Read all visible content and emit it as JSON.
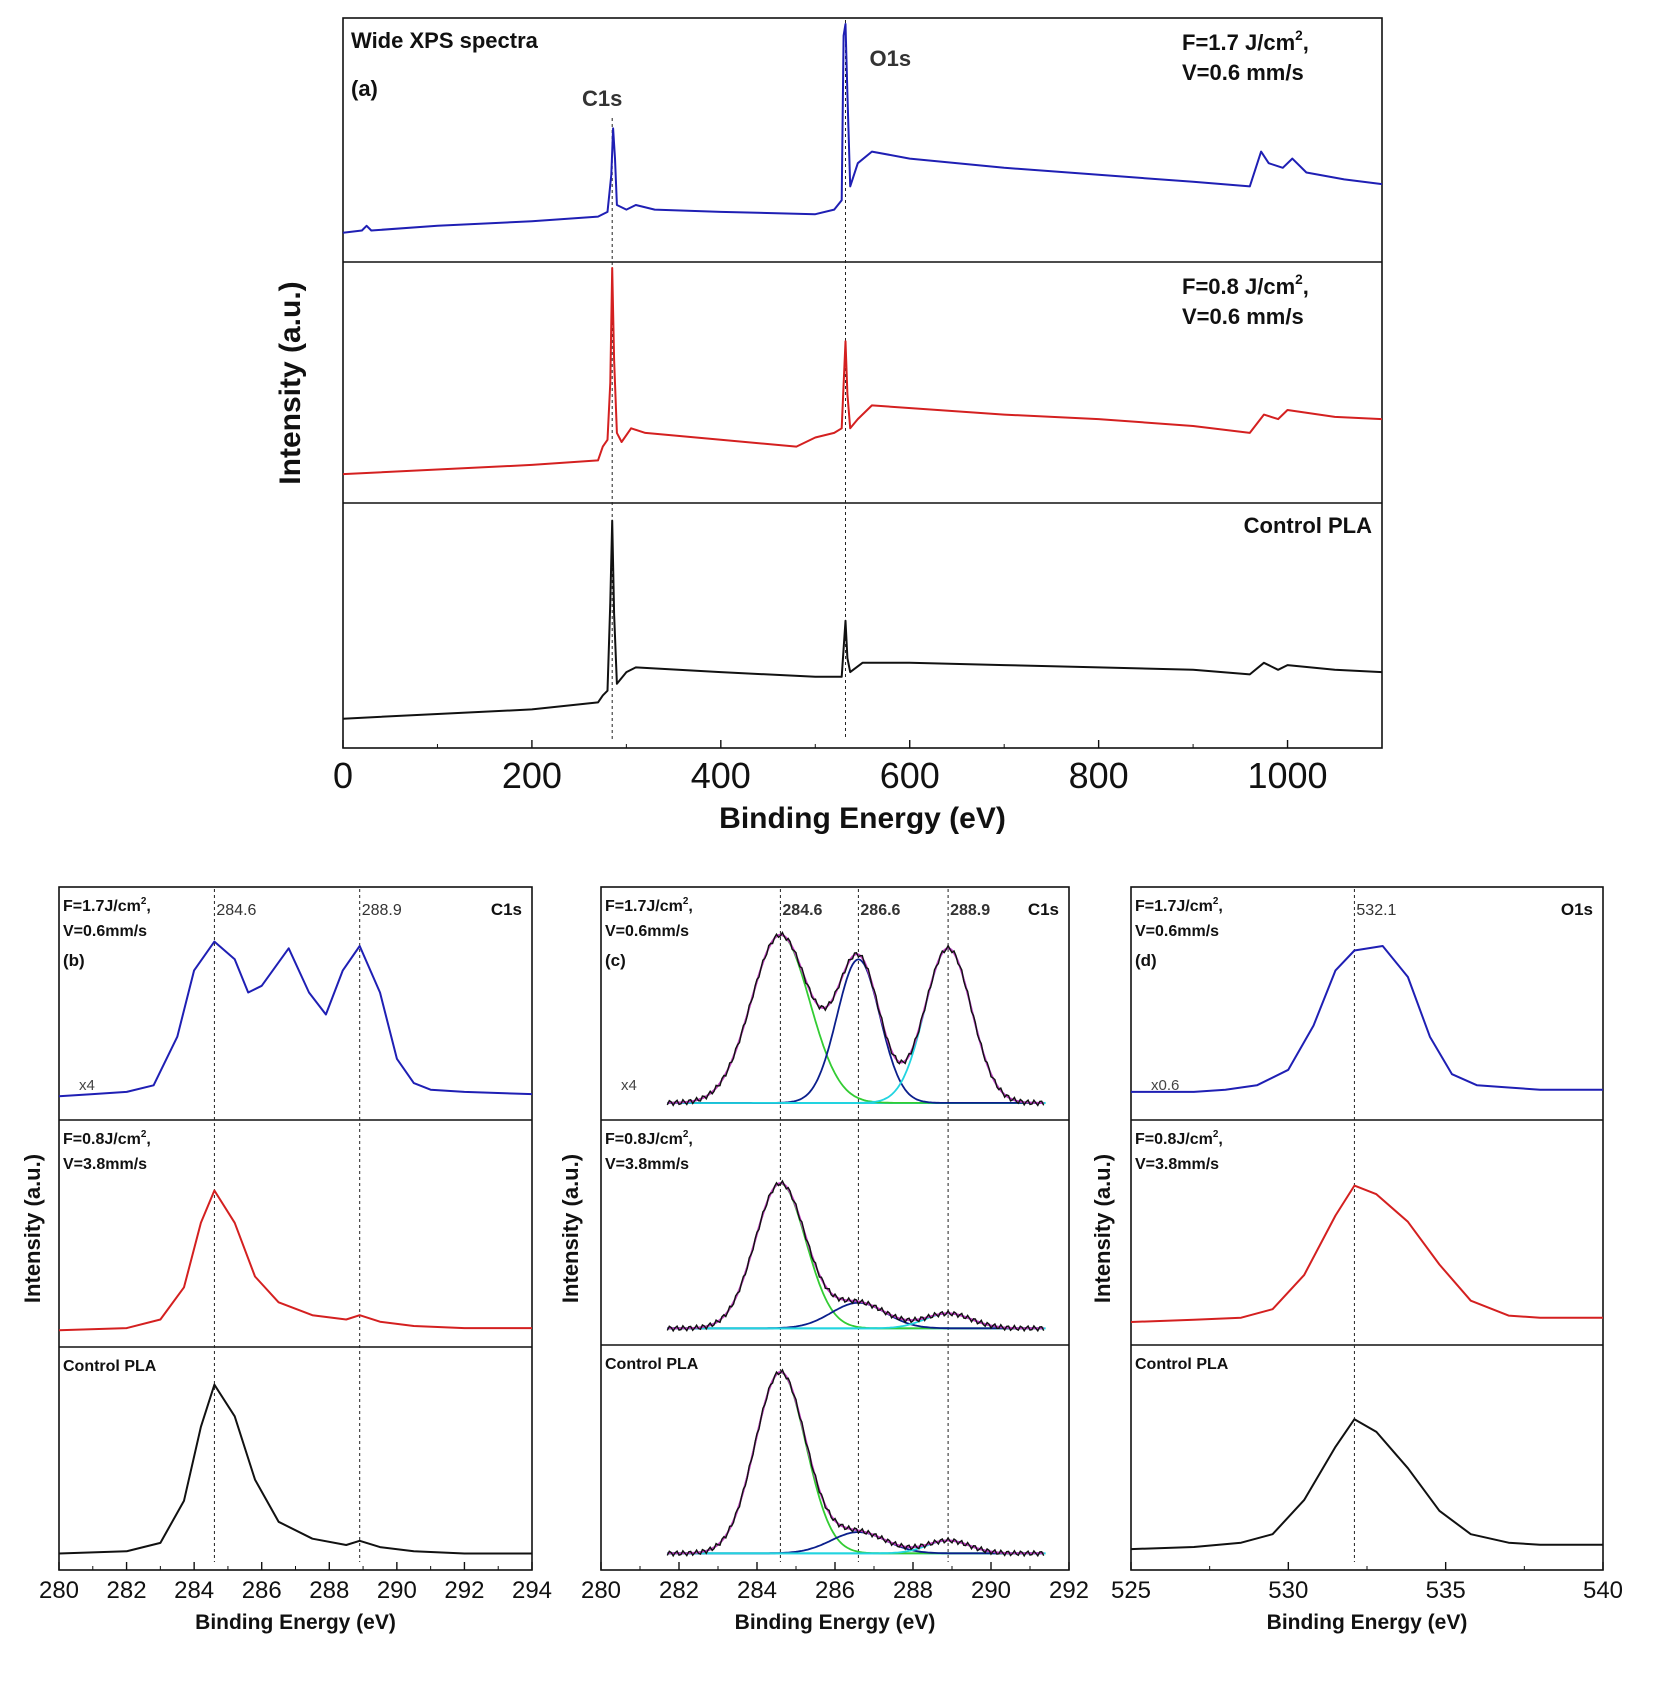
{
  "colors": {
    "blue": "#1f1fb4",
    "red": "#d42020",
    "black": "#111111",
    "green": "#33cc33",
    "navy": "#0b1f8c",
    "cyan": "#22d4e0",
    "magenta": "#c23cc2"
  },
  "chart_data": [
    {
      "id": "a",
      "type": "line",
      "panel_label": "(a)",
      "title": "Wide XPS spectra",
      "xlabel": "Binding Energy (eV)",
      "ylabel": "Intensity (a.u.)",
      "xlim": [
        0,
        1100
      ],
      "xticks": [
        "0",
        "200",
        "400",
        "600",
        "800",
        "1000"
      ],
      "vlines": [
        {
          "x": 285,
          "label": "C1s"
        },
        {
          "x": 532,
          "label": "O1s"
        }
      ],
      "rows": [
        {
          "label1": "F=1.7 J/cm²,",
          "label2": "V=0.6 mm/s",
          "color": "blue",
          "points": [
            [
              0,
              0.1
            ],
            [
              20,
              0.11
            ],
            [
              25,
              0.13
            ],
            [
              30,
              0.11
            ],
            [
              100,
              0.13
            ],
            [
              200,
              0.15
            ],
            [
              270,
              0.17
            ],
            [
              280,
              0.19
            ],
            [
              284,
              0.35
            ],
            [
              286,
              0.55
            ],
            [
              288,
              0.42
            ],
            [
              290,
              0.22
            ],
            [
              300,
              0.2
            ],
            [
              310,
              0.22
            ],
            [
              330,
              0.2
            ],
            [
              400,
              0.19
            ],
            [
              500,
              0.18
            ],
            [
              520,
              0.2
            ],
            [
              528,
              0.24
            ],
            [
              530,
              0.95
            ],
            [
              532,
              1.0
            ],
            [
              534,
              0.7
            ],
            [
              537,
              0.3
            ],
            [
              545,
              0.4
            ],
            [
              560,
              0.45
            ],
            [
              600,
              0.42
            ],
            [
              700,
              0.38
            ],
            [
              800,
              0.35
            ],
            [
              900,
              0.32
            ],
            [
              960,
              0.3
            ],
            [
              972,
              0.45
            ],
            [
              980,
              0.4
            ],
            [
              995,
              0.38
            ],
            [
              1005,
              0.42
            ],
            [
              1020,
              0.36
            ],
            [
              1060,
              0.33
            ],
            [
              1100,
              0.31
            ]
          ]
        },
        {
          "label1": "F=0.8 J/cm²,",
          "label2": "V=0.6 mm/s",
          "color": "red",
          "points": [
            [
              0,
              0.1
            ],
            [
              100,
              0.12
            ],
            [
              200,
              0.14
            ],
            [
              270,
              0.16
            ],
            [
              275,
              0.22
            ],
            [
              280,
              0.25
            ],
            [
              283,
              0.5
            ],
            [
              285,
              1.0
            ],
            [
              287,
              0.6
            ],
            [
              290,
              0.28
            ],
            [
              295,
              0.24
            ],
            [
              305,
              0.3
            ],
            [
              320,
              0.28
            ],
            [
              400,
              0.25
            ],
            [
              480,
              0.22
            ],
            [
              500,
              0.26
            ],
            [
              520,
              0.28
            ],
            [
              528,
              0.3
            ],
            [
              532,
              0.68
            ],
            [
              534,
              0.45
            ],
            [
              537,
              0.3
            ],
            [
              545,
              0.34
            ],
            [
              560,
              0.4
            ],
            [
              700,
              0.36
            ],
            [
              800,
              0.34
            ],
            [
              900,
              0.31
            ],
            [
              960,
              0.28
            ],
            [
              975,
              0.36
            ],
            [
              990,
              0.34
            ],
            [
              1000,
              0.38
            ],
            [
              1050,
              0.35
            ],
            [
              1100,
              0.34
            ]
          ]
        },
        {
          "label1": "Control PLA",
          "label2": "",
          "color": "black",
          "points": [
            [
              0,
              0.1
            ],
            [
              100,
              0.12
            ],
            [
              200,
              0.14
            ],
            [
              270,
              0.17
            ],
            [
              275,
              0.2
            ],
            [
              280,
              0.22
            ],
            [
              283,
              0.6
            ],
            [
              285,
              0.95
            ],
            [
              287,
              0.55
            ],
            [
              290,
              0.25
            ],
            [
              300,
              0.3
            ],
            [
              310,
              0.32
            ],
            [
              400,
              0.3
            ],
            [
              500,
              0.28
            ],
            [
              528,
              0.28
            ],
            [
              532,
              0.52
            ],
            [
              534,
              0.36
            ],
            [
              537,
              0.3
            ],
            [
              550,
              0.34
            ],
            [
              600,
              0.34
            ],
            [
              700,
              0.33
            ],
            [
              800,
              0.32
            ],
            [
              900,
              0.31
            ],
            [
              960,
              0.29
            ],
            [
              975,
              0.34
            ],
            [
              990,
              0.31
            ],
            [
              1000,
              0.33
            ],
            [
              1050,
              0.31
            ],
            [
              1100,
              0.3
            ]
          ]
        }
      ]
    },
    {
      "id": "b",
      "type": "line",
      "panel_label": "(b)",
      "corner_label": "C1s",
      "xlabel": "Binding Energy (eV)",
      "ylabel": "Intensity (a.u.)",
      "xlim": [
        280,
        294
      ],
      "xticks": [
        "280",
        "282",
        "284",
        "286",
        "288",
        "290",
        "292",
        "294"
      ],
      "vlines": [
        {
          "x": 284.6,
          "label": "284.6"
        },
        {
          "x": 288.9,
          "label": "288.9"
        }
      ],
      "rows": [
        {
          "label1": "F=1.7J/cm²,",
          "label2": "V=0.6mm/s",
          "scale": "x4",
          "color": "blue",
          "points": [
            [
              280,
              0.08
            ],
            [
              281,
              0.09
            ],
            [
              282,
              0.1
            ],
            [
              282.8,
              0.13
            ],
            [
              283.5,
              0.35
            ],
            [
              284,
              0.65
            ],
            [
              284.6,
              0.78
            ],
            [
              285.2,
              0.7
            ],
            [
              285.6,
              0.55
            ],
            [
              286,
              0.58
            ],
            [
              286.8,
              0.75
            ],
            [
              287.4,
              0.55
            ],
            [
              287.9,
              0.45
            ],
            [
              288.4,
              0.65
            ],
            [
              288.9,
              0.76
            ],
            [
              289.5,
              0.55
            ],
            [
              290,
              0.25
            ],
            [
              290.5,
              0.14
            ],
            [
              291,
              0.11
            ],
            [
              292,
              0.1
            ],
            [
              294,
              0.09
            ]
          ]
        },
        {
          "label1": "F=0.8J/cm²,",
          "label2": "V=3.8mm/s",
          "color": "red",
          "points": [
            [
              280,
              0.05
            ],
            [
              282,
              0.06
            ],
            [
              283,
              0.1
            ],
            [
              283.7,
              0.25
            ],
            [
              284.2,
              0.55
            ],
            [
              284.6,
              0.7
            ],
            [
              285.2,
              0.55
            ],
            [
              285.8,
              0.3
            ],
            [
              286.5,
              0.18
            ],
            [
              287.5,
              0.12
            ],
            [
              288.5,
              0.1
            ],
            [
              288.9,
              0.12
            ],
            [
              289.5,
              0.09
            ],
            [
              290.5,
              0.07
            ],
            [
              292,
              0.06
            ],
            [
              294,
              0.06
            ]
          ]
        },
        {
          "label1": "Control PLA",
          "label2": "",
          "color": "black",
          "points": [
            [
              280,
              0.05
            ],
            [
              282,
              0.06
            ],
            [
              283,
              0.1
            ],
            [
              283.7,
              0.3
            ],
            [
              284.2,
              0.65
            ],
            [
              284.6,
              0.85
            ],
            [
              285.2,
              0.7
            ],
            [
              285.8,
              0.4
            ],
            [
              286.5,
              0.2
            ],
            [
              287.5,
              0.12
            ],
            [
              288.5,
              0.09
            ],
            [
              288.9,
              0.11
            ],
            [
              289.5,
              0.08
            ],
            [
              290.5,
              0.06
            ],
            [
              292,
              0.05
            ],
            [
              294,
              0.05
            ]
          ]
        }
      ]
    },
    {
      "id": "c",
      "type": "line",
      "panel_label": "(c)",
      "corner_label": "C1s",
      "xlabel": "Binding Energy (eV)",
      "ylabel": "Intensity (a.u.)",
      "xlim": [
        280,
        292
      ],
      "xticks": [
        "280",
        "282",
        "284",
        "286",
        "288",
        "290",
        "292"
      ],
      "vlines": [
        {
          "x": 284.6,
          "label": "284.6"
        },
        {
          "x": 286.6,
          "label": "286.6"
        },
        {
          "x": 288.9,
          "label": "288.9"
        }
      ],
      "rows": [
        {
          "label1": "F=1.7J/cm²,",
          "label2": "V=0.6mm/s",
          "scale": "x4",
          "color": "black",
          "components": [
            {
              "center": 284.6,
              "amp": 0.76,
              "sigma": 0.75,
              "color": "green"
            },
            {
              "center": 286.6,
              "amp": 0.65,
              "sigma": 0.55,
              "color": "navy"
            },
            {
              "center": 288.9,
              "amp": 0.7,
              "sigma": 0.6,
              "color": "cyan"
            }
          ]
        },
        {
          "label1": "F=0.8J/cm²,",
          "label2": "V=3.8mm/s",
          "color": "black",
          "components": [
            {
              "center": 284.6,
              "amp": 0.68,
              "sigma": 0.65,
              "color": "green"
            },
            {
              "center": 286.6,
              "amp": 0.12,
              "sigma": 0.7,
              "color": "navy"
            },
            {
              "center": 288.9,
              "amp": 0.07,
              "sigma": 0.6,
              "color": "cyan"
            }
          ]
        },
        {
          "label1": "Control PLA",
          "label2": "",
          "color": "black",
          "components": [
            {
              "center": 284.6,
              "amp": 0.85,
              "sigma": 0.65,
              "color": "green"
            },
            {
              "center": 286.6,
              "amp": 0.1,
              "sigma": 0.7,
              "color": "navy"
            },
            {
              "center": 288.9,
              "amp": 0.06,
              "sigma": 0.55,
              "color": "cyan"
            }
          ]
        }
      ]
    },
    {
      "id": "d",
      "type": "line",
      "panel_label": "(d)",
      "corner_label": "O1s",
      "xlabel": "Binding Energy (eV)",
      "ylabel": "Intensity (a.u.)",
      "xlim": [
        525,
        540
      ],
      "xticks": [
        "525",
        "530",
        "535",
        "540"
      ],
      "vlines": [
        {
          "x": 532.1,
          "label": "532.1"
        }
      ],
      "rows": [
        {
          "label1": "F=1.7J/cm²,",
          "label2": "V=0.6mm/s",
          "scale": "x0.6",
          "color": "blue",
          "points": [
            [
              525,
              0.1
            ],
            [
              527,
              0.1
            ],
            [
              528,
              0.11
            ],
            [
              529,
              0.13
            ],
            [
              530,
              0.2
            ],
            [
              530.8,
              0.4
            ],
            [
              531.5,
              0.65
            ],
            [
              532.1,
              0.74
            ],
            [
              533,
              0.76
            ],
            [
              533.8,
              0.62
            ],
            [
              534.5,
              0.35
            ],
            [
              535.2,
              0.18
            ],
            [
              536,
              0.13
            ],
            [
              537,
              0.12
            ],
            [
              538,
              0.11
            ],
            [
              540,
              0.11
            ]
          ]
        },
        {
          "label1": "F=0.8J/cm²,",
          "label2": "V=3.8mm/s",
          "color": "red",
          "points": [
            [
              525,
              0.08
            ],
            [
              527,
              0.09
            ],
            [
              528.5,
              0.1
            ],
            [
              529.5,
              0.14
            ],
            [
              530.5,
              0.3
            ],
            [
              531.5,
              0.58
            ],
            [
              532.1,
              0.72
            ],
            [
              532.8,
              0.68
            ],
            [
              533.8,
              0.55
            ],
            [
              534.8,
              0.35
            ],
            [
              535.8,
              0.18
            ],
            [
              537,
              0.11
            ],
            [
              538,
              0.1
            ],
            [
              540,
              0.1
            ]
          ]
        },
        {
          "label1": "Control PLA",
          "label2": "",
          "color": "black",
          "points": [
            [
              525,
              0.07
            ],
            [
              527,
              0.08
            ],
            [
              528.5,
              0.1
            ],
            [
              529.5,
              0.14
            ],
            [
              530.5,
              0.3
            ],
            [
              531.5,
              0.55
            ],
            [
              532.1,
              0.68
            ],
            [
              532.8,
              0.62
            ],
            [
              533.8,
              0.45
            ],
            [
              534.8,
              0.25
            ],
            [
              535.8,
              0.14
            ],
            [
              537,
              0.1
            ],
            [
              538,
              0.09
            ],
            [
              540,
              0.09
            ]
          ]
        }
      ]
    }
  ]
}
